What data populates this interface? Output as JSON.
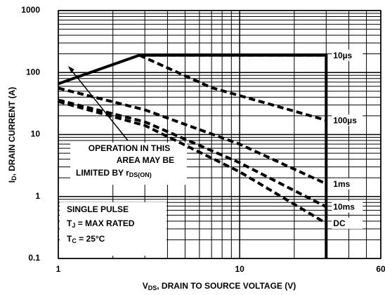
{
  "chart_data": {
    "type": "line",
    "log_x": true,
    "log_y": true,
    "grid": true,
    "minor_grid": true,
    "x_label": {
      "main": "V",
      "sub": "DS",
      "rest": ", DRAIN TO SOURCE VOLTAGE (V)"
    },
    "y_label": {
      "main": "I",
      "sub": "D",
      "rest": ", DRAIN CURRENT (A)"
    },
    "xlim": [
      1,
      60
    ],
    "ylim": [
      0.1,
      1000
    ],
    "xticks": [
      1,
      10,
      60
    ],
    "yticks": [
      0.1,
      1,
      10,
      100,
      1000
    ],
    "limit_line": {
      "x": [
        1,
        2.8,
        30,
        30
      ],
      "values": [
        66,
        190,
        190,
        0.1
      ],
      "color": "#000000"
    },
    "series": [
      {
        "name": "10µs",
        "color": "#000000",
        "x": [
          2.8,
          30
        ],
        "values": [
          190,
          190
        ]
      },
      {
        "name": "100µs",
        "color": "#000000",
        "x": [
          2.8,
          7,
          30
        ],
        "values": [
          190,
          57,
          17
        ]
      },
      {
        "name": "1ms",
        "color": "#000000",
        "x": [
          1,
          3,
          10,
          30
        ],
        "values": [
          56,
          25,
          7,
          1.6
        ]
      },
      {
        "name": "10ms",
        "color": "#000000",
        "x": [
          1,
          3,
          10,
          30
        ],
        "values": [
          36,
          16,
          3.5,
          0.68
        ]
      },
      {
        "name": "DC",
        "color": "#000000",
        "x": [
          1,
          3,
          10,
          30
        ],
        "values": [
          34,
          14,
          2.5,
          0.37
        ]
      }
    ],
    "annotation": {
      "lines": [
        "OPERATION IN THIS",
        "AREA MAY BE"
      ],
      "last": "LIMITED BY r",
      "last_sub": "DS(ON)"
    },
    "conditions": {
      "line1": "SINGLE PULSE",
      "line2": {
        "main": "T",
        "sub": "J",
        "rest": " = MAX RATED"
      },
      "line3": {
        "main": "T",
        "sub": "C",
        "rest": " = 25°C"
      }
    }
  }
}
